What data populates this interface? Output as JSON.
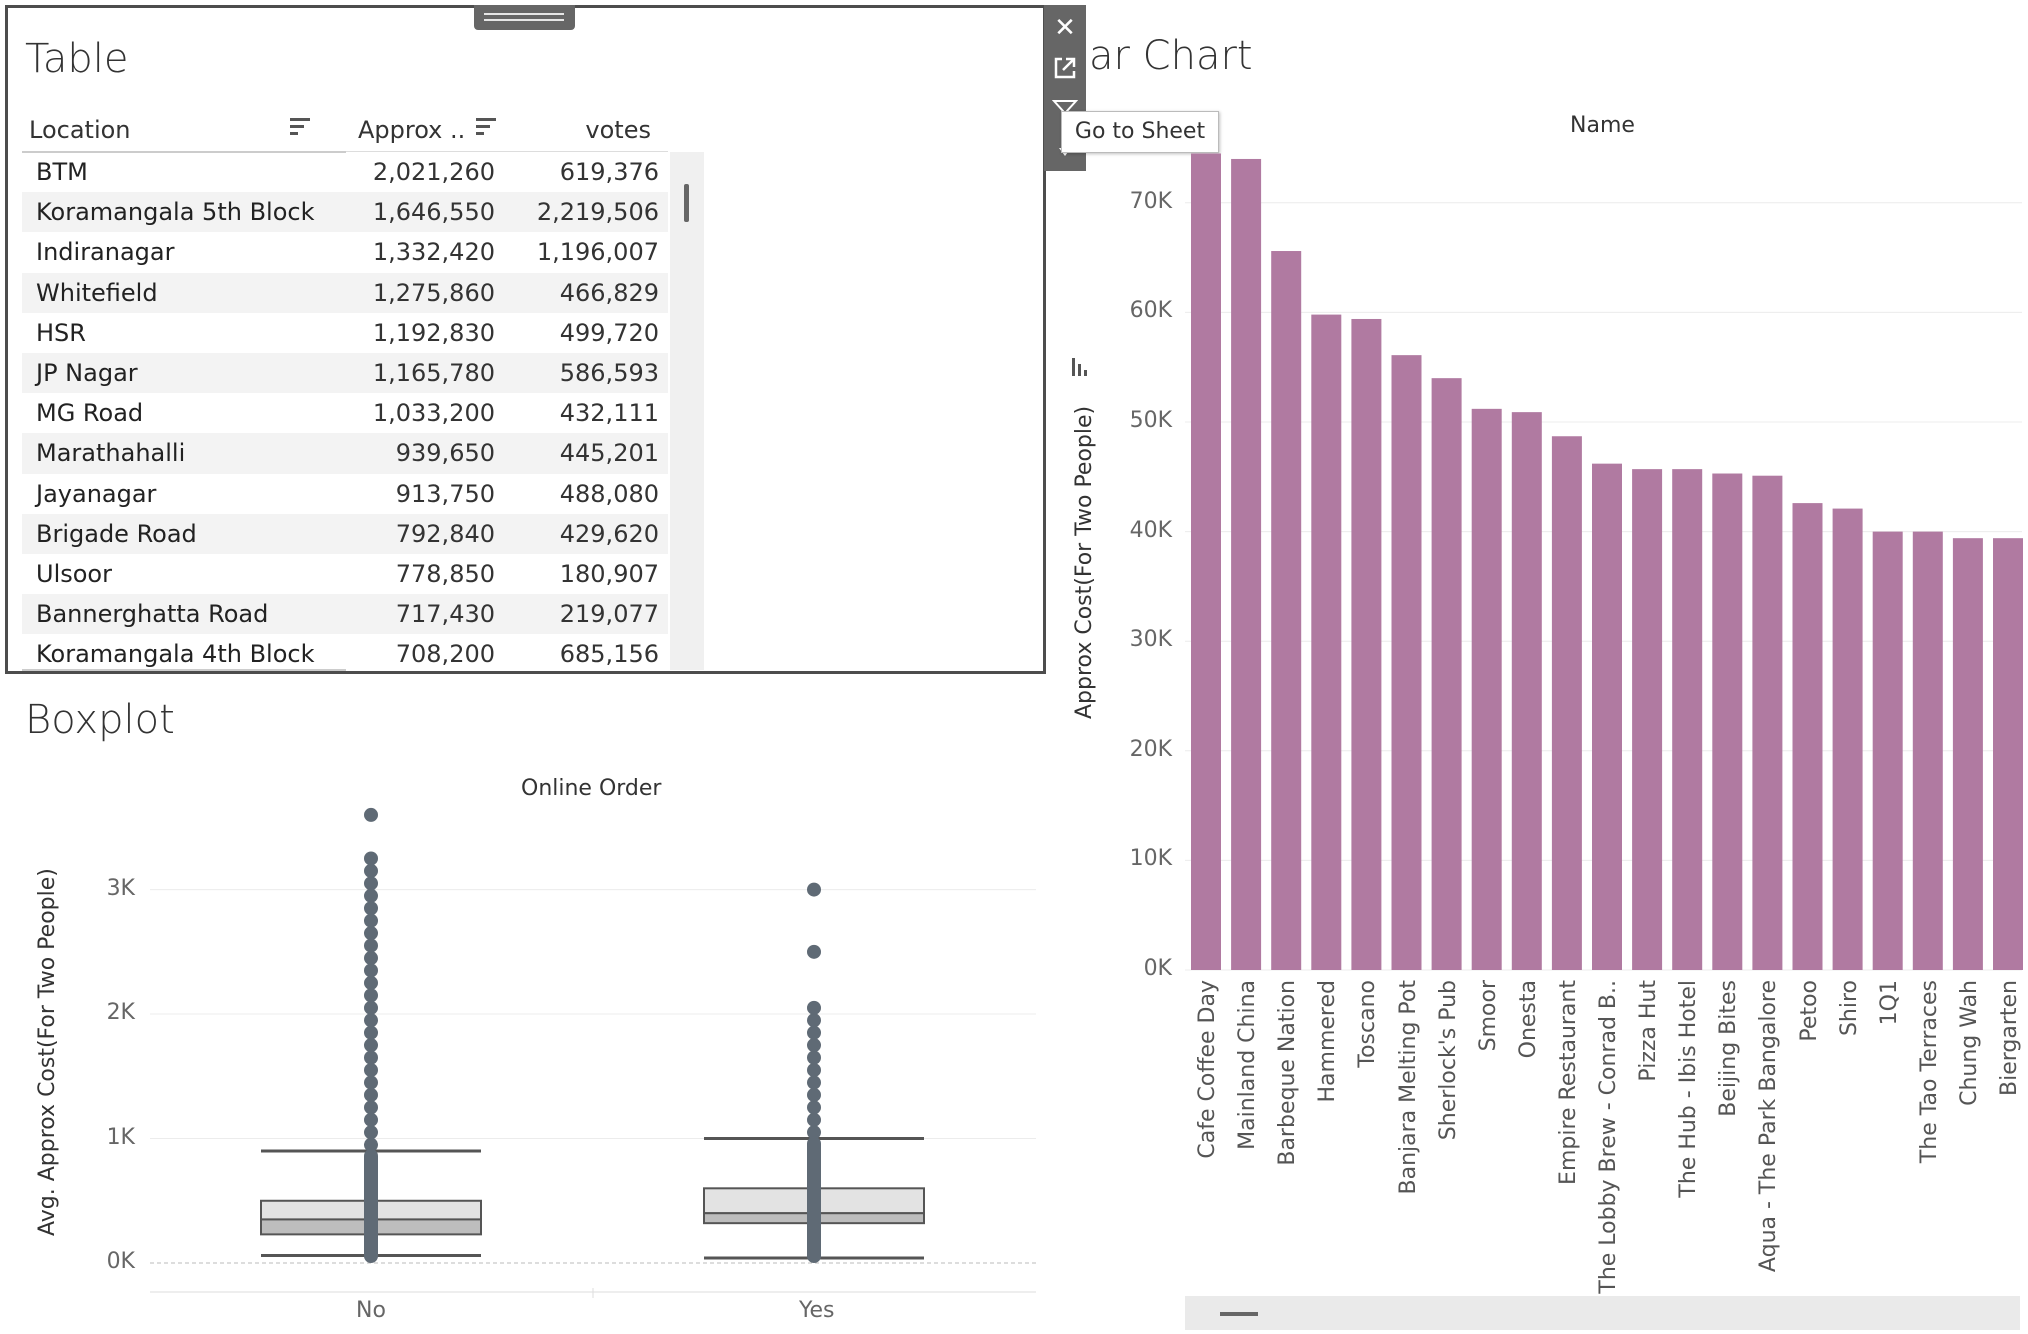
{
  "table": {
    "title": "Table",
    "columns": [
      "Location",
      "Approx ..",
      "votes"
    ],
    "rows": [
      [
        "BTM",
        "2,021,260",
        "619,376"
      ],
      [
        "Koramangala 5th Block",
        "1,646,550",
        "2,219,506"
      ],
      [
        "Indiranagar",
        "1,332,420",
        "1,196,007"
      ],
      [
        "Whitefield",
        "1,275,860",
        "466,829"
      ],
      [
        "HSR",
        "1,192,830",
        "499,720"
      ],
      [
        "JP Nagar",
        "1,165,780",
        "586,593"
      ],
      [
        "MG Road",
        "1,033,200",
        "432,111"
      ],
      [
        "Marathahalli",
        "939,650",
        "445,201"
      ],
      [
        "Jayanagar",
        "913,750",
        "488,080"
      ],
      [
        "Brigade Road",
        "792,840",
        "429,620"
      ],
      [
        "Ulsoor",
        "778,850",
        "180,907"
      ],
      [
        "Bannerghatta Road",
        "717,430",
        "219,077"
      ],
      [
        "Koramangala 4th Block",
        "708,200",
        "685,156"
      ]
    ]
  },
  "toolbar": {
    "tooltip": "Go to Sheet",
    "icons": [
      "close-icon",
      "external-link-icon",
      "filter-icon",
      "more-options-icon"
    ]
  },
  "bar_chart_title_visible": "ar Chart",
  "boxplot_title": "Boxplot",
  "chart_data": [
    {
      "type": "bar",
      "title": "Name",
      "ylabel": "Approx Cost(For Two People)",
      "ylim": [
        0,
        75000
      ],
      "yticks": [
        "0K",
        "10K",
        "20K",
        "30K",
        "40K",
        "50K",
        "60K",
        "70K"
      ],
      "bar_color": "#b07aa1",
      "categories": [
        "Cafe Coffee Day",
        "Mainland China",
        "Barbeque Nation",
        "Hammered",
        "Toscano",
        "Banjara Melting Pot",
        "Sherlock's Pub",
        "Smoor",
        "Onesta",
        "Empire Restaurant",
        "The Lobby Brew - Conrad B..",
        "Pizza Hut",
        "The Hub - Ibis Hotel",
        "Beijing Bites",
        "Aqua - The Park Bangalore",
        "Petoo",
        "Shiro",
        "1Q1",
        "The Tao Terraces",
        "Chung Wah",
        "Biergarten"
      ],
      "values": [
        74500,
        74000,
        65600,
        59800,
        59400,
        56100,
        54000,
        51200,
        50900,
        48700,
        46200,
        45700,
        45700,
        45300,
        45100,
        42600,
        42100,
        40000,
        40000,
        39400,
        39400
      ]
    },
    {
      "type": "boxplot",
      "title": "Online Order",
      "ylabel": "Avg. Approx Cost(For Two People)",
      "ylim": [
        0,
        3800
      ],
      "yticks": [
        "0K",
        "1K",
        "2K",
        "3K"
      ],
      "categories": [
        "No",
        "Yes"
      ],
      "series": [
        {
          "name": "No",
          "whisker_low": 60,
          "q1": 230,
          "median": 350,
          "q3": 500,
          "whisker_high": 900,
          "outliers": [
            950,
            1050,
            1150,
            1250,
            1350,
            1450,
            1550,
            1650,
            1750,
            1850,
            1950,
            2050,
            2150,
            2250,
            2350,
            2450,
            2550,
            2650,
            2750,
            2850,
            2950,
            3050,
            3150,
            3250,
            3600
          ]
        },
        {
          "name": "Yes",
          "whisker_low": 40,
          "q1": 320,
          "median": 400,
          "q3": 600,
          "whisker_high": 1000,
          "outliers": [
            1050,
            1150,
            1250,
            1350,
            1450,
            1550,
            1650,
            1750,
            1850,
            1950,
            2050,
            2500,
            3000
          ]
        }
      ]
    }
  ]
}
